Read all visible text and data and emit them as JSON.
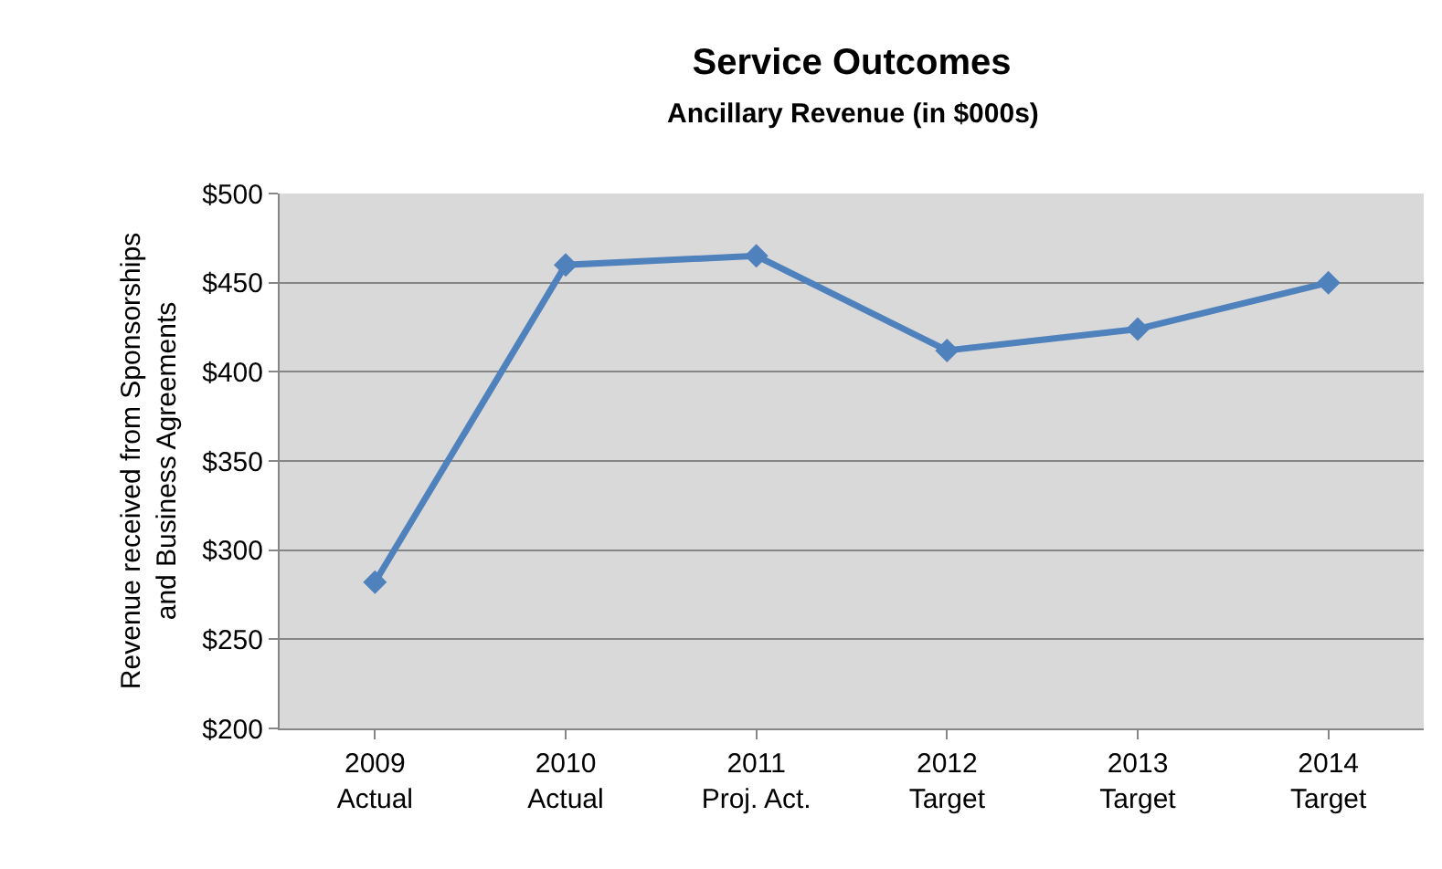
{
  "chart_data": {
    "type": "line",
    "title": "Service Outcomes",
    "subtitle": "Ancillary Revenue (in $000s)",
    "ylabel": "Revenue received from Sponsorships\nand Business Agreements",
    "categories": [
      "2009\nActual",
      "2010\nActual",
      "2011\nProj. Act.",
      "2012\nTarget",
      "2013\nTarget",
      "2014\nTarget"
    ],
    "series": [
      {
        "color": "#4f81bd",
        "values": [
          282,
          460,
          465,
          412,
          424,
          450
        ]
      }
    ],
    "ylim": [
      200,
      500
    ],
    "yticks": [
      {
        "value": 200,
        "label": "$200"
      },
      {
        "value": 250,
        "label": "$250"
      },
      {
        "value": 300,
        "label": "$300"
      },
      {
        "value": 350,
        "label": "$350"
      },
      {
        "value": 400,
        "label": "$400"
      },
      {
        "value": 450,
        "label": "$450"
      },
      {
        "value": 500,
        "label": "$500"
      }
    ],
    "grid": "y",
    "marker": "diamond",
    "line_style": "solid",
    "legend": false
  }
}
